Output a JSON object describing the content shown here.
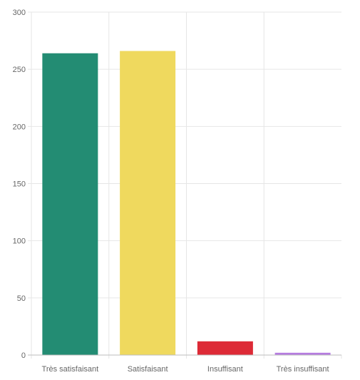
{
  "chart_data": {
    "type": "bar",
    "categories": [
      "Très satisfaisant",
      "Satisfaisant",
      "Insuffisant",
      "Très insuffisant"
    ],
    "values": [
      264,
      266,
      12,
      2
    ],
    "colors": [
      "#238c73",
      "#efd95e",
      "#dd2a36",
      "#b57be0"
    ],
    "ylim": [
      0,
      300
    ],
    "yticks": [
      0,
      50,
      100,
      150,
      200,
      250,
      300
    ],
    "grid": true,
    "legend": "none"
  }
}
